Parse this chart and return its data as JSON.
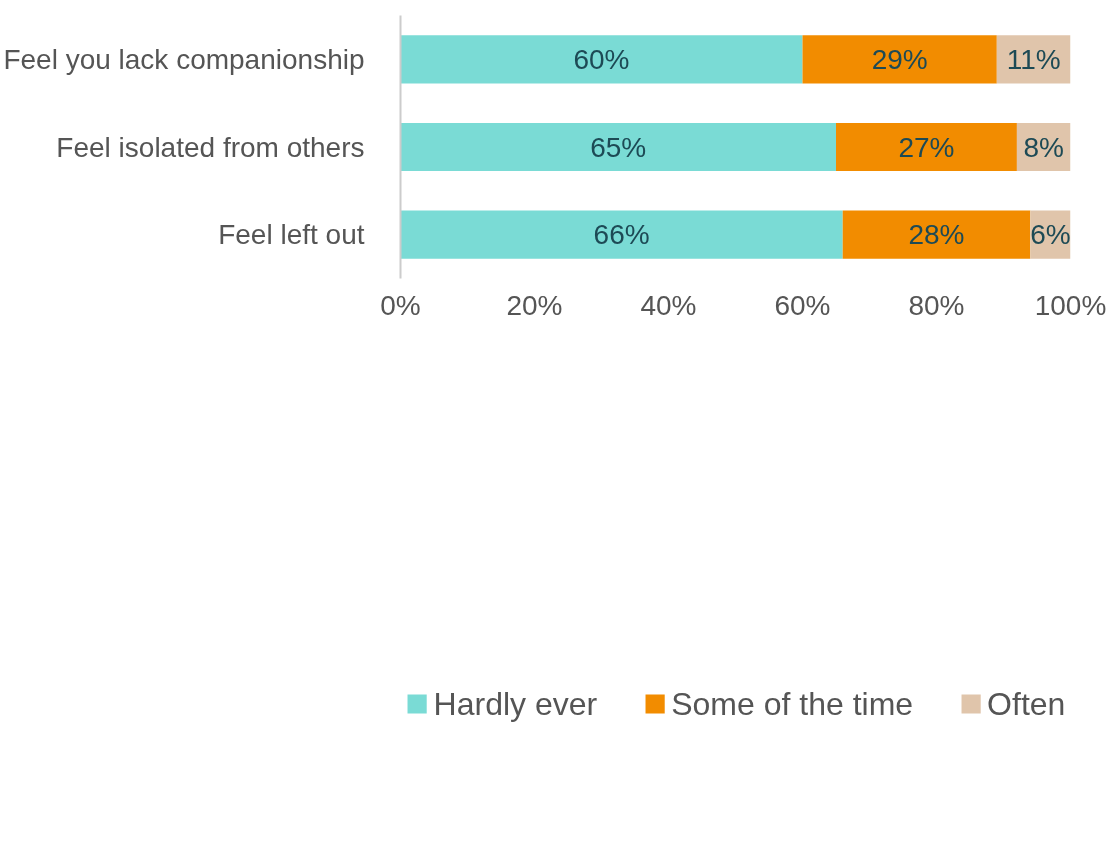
{
  "chart_data": {
    "type": "bar",
    "orientation": "horizontal",
    "stacked": true,
    "categories": [
      "Feel you lack companionship",
      "Feel isolated from others",
      "Feel left out"
    ],
    "series": [
      {
        "name": "Hardly ever",
        "color": "#7adbd5",
        "values": [
          60,
          65,
          66
        ],
        "value_labels": [
          "60%",
          "65%",
          "66%"
        ]
      },
      {
        "name": "Some of the time",
        "color": "#f28c00",
        "values": [
          29,
          27,
          28
        ],
        "value_labels": [
          "29%",
          "27%",
          "28%"
        ]
      },
      {
        "name": "Often",
        "color": "#e0c5ab",
        "values": [
          11,
          8,
          6
        ],
        "value_labels": [
          "11%",
          "8%",
          "6%"
        ]
      }
    ],
    "xlim": [
      0,
      100
    ],
    "xticks": [
      {
        "value": 0,
        "label": "0%"
      },
      {
        "value": 20,
        "label": "20%"
      },
      {
        "value": 40,
        "label": "40%"
      },
      {
        "value": 60,
        "label": "60%"
      },
      {
        "value": 80,
        "label": "80%"
      },
      {
        "value": 100,
        "label": "100%"
      }
    ],
    "grid": false,
    "legend": "bottom"
  }
}
